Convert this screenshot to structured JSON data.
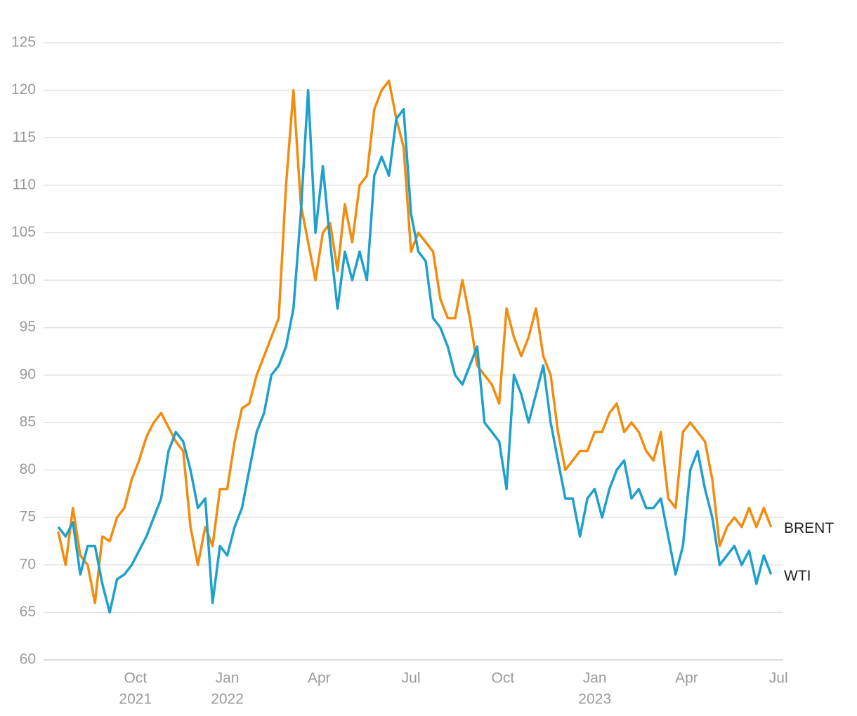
{
  "chart_data": {
    "type": "line",
    "x": [
      2021.54,
      2021.56,
      2021.58,
      2021.6,
      2021.62,
      2021.64,
      2021.66,
      2021.68,
      2021.7,
      2021.72,
      2021.74,
      2021.76,
      2021.78,
      2021.8,
      2021.82,
      2021.84,
      2021.86,
      2021.88,
      2021.9,
      2021.92,
      2021.94,
      2021.96,
      2021.98,
      2022.0,
      2022.02,
      2022.04,
      2022.06,
      2022.08,
      2022.1,
      2022.12,
      2022.14,
      2022.16,
      2022.18,
      2022.2,
      2022.22,
      2022.24,
      2022.26,
      2022.28,
      2022.3,
      2022.32,
      2022.34,
      2022.36,
      2022.38,
      2022.4,
      2022.42,
      2022.44,
      2022.46,
      2022.48,
      2022.5,
      2022.52,
      2022.54,
      2022.56,
      2022.58,
      2022.6,
      2022.62,
      2022.64,
      2022.66,
      2022.68,
      2022.7,
      2022.72,
      2022.74,
      2022.76,
      2022.78,
      2022.8,
      2022.82,
      2022.84,
      2022.86,
      2022.88,
      2022.9,
      2022.92,
      2022.94,
      2022.96,
      2022.98,
      2023.0,
      2023.02,
      2023.04,
      2023.06,
      2023.08,
      2023.1,
      2023.12,
      2023.14,
      2023.16,
      2023.18,
      2023.2,
      2023.22,
      2023.24,
      2023.26,
      2023.28,
      2023.3,
      2023.32,
      2023.34,
      2023.36,
      2023.38,
      2023.4,
      2023.42,
      2023.44,
      2023.46,
      2023.48
    ],
    "series": [
      {
        "name": "BRENT",
        "color": "#f28c0f",
        "values": [
          73.5,
          70,
          76,
          71,
          70,
          66,
          73,
          72.5,
          75,
          76,
          79,
          81,
          83.5,
          85,
          86,
          84.5,
          83,
          82,
          74,
          70,
          74,
          72,
          78,
          78,
          83,
          86.5,
          87,
          90,
          92,
          94,
          96,
          110,
          120,
          108,
          104,
          100,
          105,
          106,
          101,
          108,
          104,
          110,
          111,
          118,
          120,
          121,
          117,
          114,
          103,
          105,
          104,
          103,
          98,
          96,
          96,
          100,
          96,
          91,
          90,
          89,
          87,
          97,
          94,
          92,
          94,
          97,
          92,
          90,
          84,
          80,
          81,
          82,
          82,
          84,
          84,
          86,
          87,
          84,
          85,
          84,
          82,
          81,
          84,
          77,
          76,
          84,
          85,
          84,
          83,
          79,
          72,
          74,
          75,
          74,
          76,
          74,
          76,
          74
        ]
      },
      {
        "name": "WTI",
        "color": "#1ea0cc",
        "values": [
          74,
          73,
          74.5,
          69,
          72,
          72,
          68,
          65,
          68.5,
          69,
          70,
          71.5,
          73,
          75,
          77,
          82,
          84,
          83,
          80,
          76,
          77,
          66,
          72,
          71,
          74,
          76,
          80,
          84,
          86,
          90,
          91,
          93,
          97,
          107,
          120,
          105,
          112,
          104,
          97,
          103,
          100,
          103,
          100,
          111,
          113,
          111,
          117,
          118,
          107,
          103,
          102,
          96,
          95,
          93,
          90,
          89,
          91,
          93,
          85,
          84,
          83,
          78,
          90,
          88,
          85,
          88,
          91,
          85,
          81,
          77,
          77,
          73,
          77,
          78,
          75,
          78,
          80,
          81,
          77,
          78,
          76,
          76,
          77,
          73,
          69,
          72,
          80,
          82,
          78,
          75,
          70,
          71,
          72,
          70,
          71.5,
          68,
          71,
          69
        ]
      }
    ],
    "xlim": [
      2021.5,
      2023.513
    ],
    "xticks": [
      {
        "value": 2021.75,
        "label": "Oct",
        "year": "2021"
      },
      {
        "value": 2022.0,
        "label": "Jan",
        "year": "2022"
      },
      {
        "value": 2022.25,
        "label": "Apr"
      },
      {
        "value": 2022.5,
        "label": "Jul"
      },
      {
        "value": 2022.75,
        "label": "Oct"
      },
      {
        "value": 2023.0,
        "label": "Jan",
        "year": "2023"
      },
      {
        "value": 2023.25,
        "label": "Apr"
      },
      {
        "value": 2023.5,
        "label": "Jul"
      }
    ],
    "ylim": [
      60,
      130
    ],
    "yticks": [
      60,
      65,
      70,
      75,
      80,
      85,
      90,
      95,
      100,
      105,
      110,
      115,
      120,
      125
    ],
    "grid": true
  }
}
